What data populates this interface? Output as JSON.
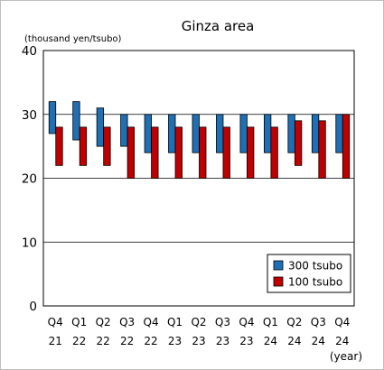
{
  "chart_data": {
    "type": "bar",
    "title": "Ginza area",
    "ylabel": "(thousand yen/tsubo)",
    "xlabel": "(year)",
    "ylim": [
      0,
      40
    ],
    "yticks": [
      0,
      10,
      20,
      30,
      40
    ],
    "grid": true,
    "legend_position": "bottom-right",
    "categories": [
      {
        "quarter": "Q4",
        "year": "21"
      },
      {
        "quarter": "Q1",
        "year": "22"
      },
      {
        "quarter": "Q2",
        "year": "22"
      },
      {
        "quarter": "Q3",
        "year": "22"
      },
      {
        "quarter": "Q4",
        "year": "22"
      },
      {
        "quarter": "Q1",
        "year": "23"
      },
      {
        "quarter": "Q2",
        "year": "23"
      },
      {
        "quarter": "Q3",
        "year": "23"
      },
      {
        "quarter": "Q4",
        "year": "23"
      },
      {
        "quarter": "Q1",
        "year": "24"
      },
      {
        "quarter": "Q2",
        "year": "24"
      },
      {
        "quarter": "Q3",
        "year": "24"
      },
      {
        "quarter": "Q4",
        "year": "24"
      }
    ],
    "series": [
      {
        "name": "300 tsubo",
        "color": "#1f6fb5",
        "low": [
          27,
          26,
          25,
          25,
          24,
          24,
          24,
          24,
          24,
          24,
          24,
          24,
          24
        ],
        "high": [
          32,
          32,
          31,
          30,
          30,
          30,
          30,
          30,
          30,
          30,
          30,
          30,
          30
        ]
      },
      {
        "name": "100 tsubo",
        "color": "#c00000",
        "low": [
          22,
          22,
          22,
          20,
          20,
          20,
          20,
          20,
          20,
          20,
          22,
          20,
          20
        ],
        "high": [
          28,
          28,
          28,
          28,
          28,
          28,
          28,
          28,
          28,
          28,
          29,
          29,
          30
        ]
      }
    ]
  }
}
